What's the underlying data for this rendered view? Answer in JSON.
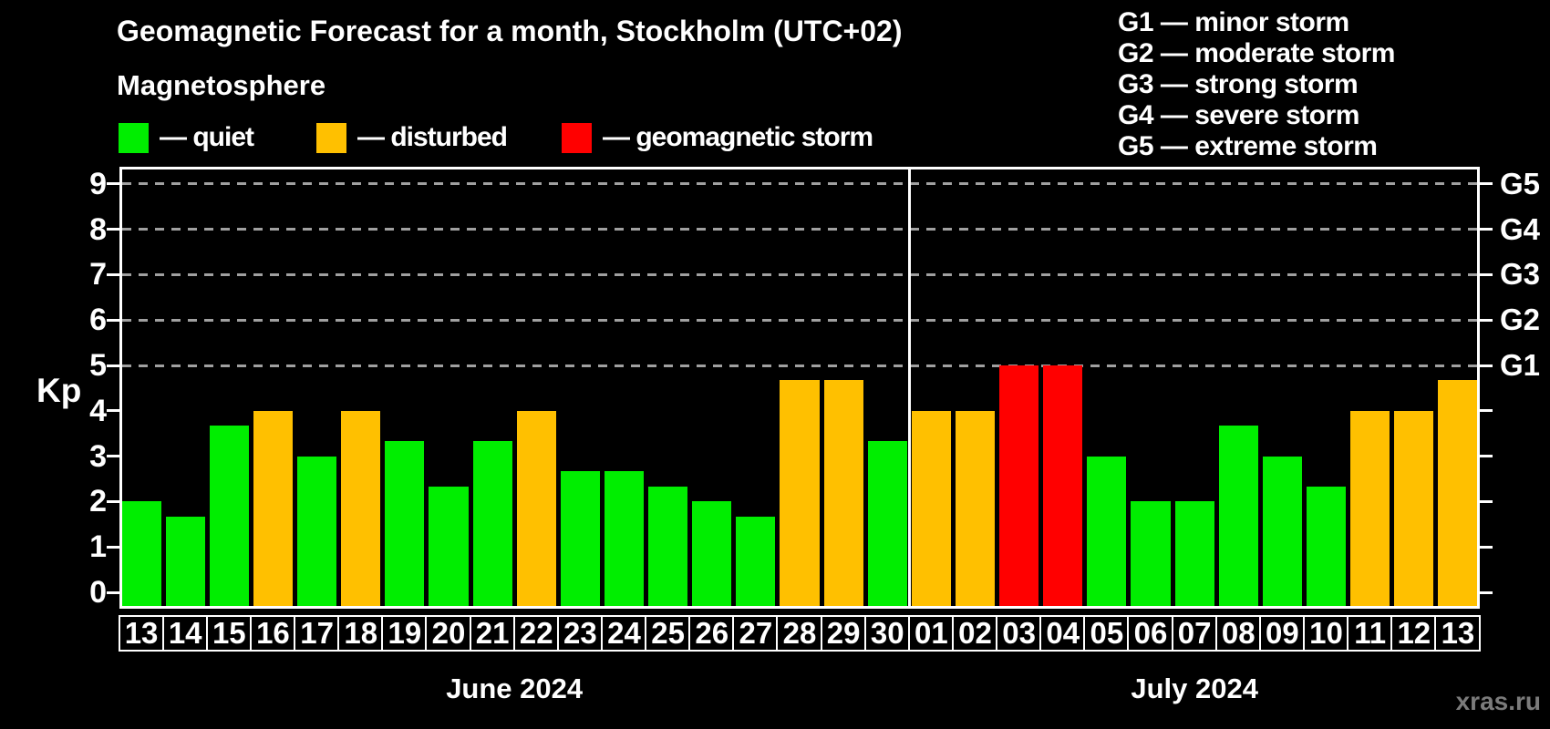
{
  "title": "Geomagnetic Forecast for a month, Stockholm (UTC+02)",
  "subtitle": "Magnetosphere",
  "legend": {
    "items": [
      {
        "status": "quiet",
        "label": "— quiet"
      },
      {
        "status": "disturbed",
        "label": "— disturbed"
      },
      {
        "status": "storm",
        "label": "— geomagnetic storm"
      }
    ]
  },
  "g_scale_legend": [
    "G1 — minor storm",
    "G2 — moderate storm",
    "G3 — strong storm",
    "G4 — severe storm",
    "G5 — extreme storm"
  ],
  "colors": {
    "quiet": "#00ee00",
    "disturbed": "#ffc000",
    "storm": "#ff0000",
    "background": "#000000",
    "grid": "#a0a0a0",
    "axis": "#ffffff",
    "watermark": "#7b7b7b"
  },
  "y_axis": {
    "label": "Kp",
    "ticks": [
      0,
      1,
      2,
      3,
      4,
      5,
      6,
      7,
      8,
      9
    ]
  },
  "right_axis": {
    "g_levels": [
      {
        "label": "G1",
        "kp": 5
      },
      {
        "label": "G2",
        "kp": 6
      },
      {
        "label": "G3",
        "kp": 7
      },
      {
        "label": "G4",
        "kp": 8
      },
      {
        "label": "G5",
        "kp": 9
      }
    ]
  },
  "watermark": "xras.ru",
  "chart_data": {
    "type": "bar",
    "title": "Geomagnetic Forecast for a month, Stockholm (UTC+02)",
    "ylabel": "Kp",
    "ylim": [
      0,
      9
    ],
    "grid": "dashed horizontal lines at Kp 5,6,7,8,9",
    "legend_position": "top-left",
    "gridline_levels": [
      5,
      6,
      7,
      8,
      9
    ],
    "months": [
      {
        "label": "June 2024",
        "days": [
          "13",
          "14",
          "15",
          "16",
          "17",
          "18",
          "19",
          "20",
          "21",
          "22",
          "23",
          "24",
          "25",
          "26",
          "27",
          "28",
          "29",
          "30"
        ],
        "values": [
          2,
          1.67,
          3.67,
          4,
          3,
          4,
          3.33,
          2.33,
          3.33,
          4,
          2.67,
          2.67,
          2.33,
          2,
          1.67,
          4.67,
          4.67,
          3.33
        ],
        "statuses": [
          "quiet",
          "quiet",
          "quiet",
          "disturbed",
          "quiet",
          "disturbed",
          "quiet",
          "quiet",
          "quiet",
          "disturbed",
          "quiet",
          "quiet",
          "quiet",
          "quiet",
          "quiet",
          "disturbed",
          "disturbed",
          "quiet"
        ]
      },
      {
        "label": "July 2024",
        "days": [
          "01",
          "02",
          "03",
          "04",
          "05",
          "06",
          "07",
          "08",
          "09",
          "10",
          "11",
          "12",
          "13"
        ],
        "values": [
          4,
          4,
          5,
          5,
          3,
          2,
          2,
          3.67,
          3,
          2.33,
          4,
          4,
          4.67
        ],
        "statuses": [
          "disturbed",
          "disturbed",
          "storm",
          "storm",
          "quiet",
          "quiet",
          "quiet",
          "quiet",
          "quiet",
          "quiet",
          "disturbed",
          "disturbed",
          "disturbed"
        ]
      }
    ]
  }
}
